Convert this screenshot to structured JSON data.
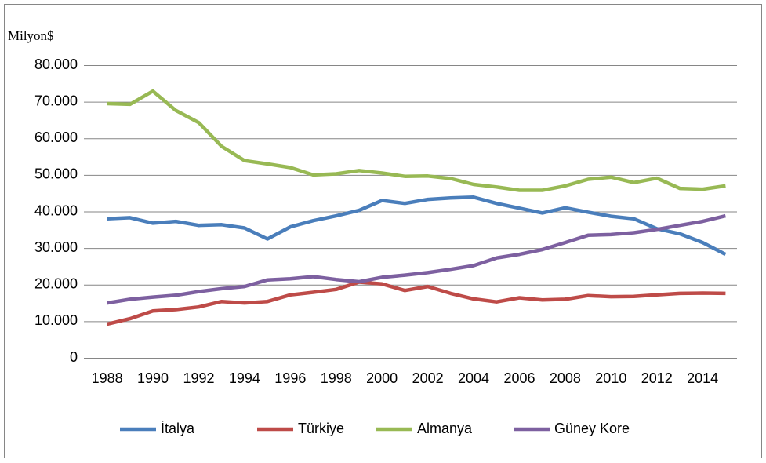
{
  "chart_data": {
    "type": "line",
    "y_label": "Milyon$",
    "categories": [
      "1988",
      null,
      "1990",
      null,
      "1992",
      null,
      "1994",
      null,
      "1996",
      null,
      "1998",
      null,
      "2000",
      null,
      "2002",
      null,
      "2004",
      null,
      "2006",
      null,
      "2008",
      null,
      "2010",
      null,
      "2012",
      null,
      "2014",
      null
    ],
    "series": [
      {
        "name": "İtalya",
        "color": "#4a7ebb",
        "values": [
          38000,
          38300,
          36800,
          37300,
          36200,
          36400,
          35500,
          32500,
          35800,
          37500,
          38800,
          40300,
          43000,
          42200,
          43300,
          43700,
          43900,
          42200,
          40900,
          39600,
          41000,
          39800,
          38700,
          38000,
          35300,
          33900,
          31500,
          28300
        ]
      },
      {
        "name": "Türkiye",
        "color": "#be4b48",
        "values": [
          9200,
          10700,
          12800,
          13200,
          13900,
          15400,
          15000,
          15400,
          17200,
          17900,
          18700,
          20700,
          20200,
          18400,
          19500,
          17600,
          16100,
          15300,
          16400,
          15800,
          16000,
          17000,
          16700,
          16800,
          17200,
          17600,
          17700,
          17600
        ]
      },
      {
        "name": "Almanya",
        "color": "#98b954",
        "values": [
          69500,
          69300,
          72900,
          67600,
          64300,
          57800,
          53900,
          53000,
          52000,
          50000,
          50300,
          51200,
          50500,
          49600,
          49700,
          49000,
          47400,
          46700,
          45800,
          45800,
          47000,
          48800,
          49400,
          47900,
          49100,
          46300,
          46100,
          47000
        ]
      },
      {
        "name": "Güney Kore",
        "color": "#7d60a0",
        "values": [
          15000,
          16000,
          16600,
          17100,
          18100,
          18900,
          19500,
          21300,
          21600,
          22200,
          21400,
          20800,
          22000,
          22600,
          23300,
          24200,
          25200,
          27300,
          28300,
          29600,
          31500,
          33500,
          33700,
          34200,
          35100,
          36200,
          37300,
          38800
        ]
      }
    ],
    "ylim": [
      0,
      80000
    ],
    "yticks": [
      0,
      {
        "value": 10000,
        "label": "10.000"
      },
      {
        "value": 20000,
        "label": "20.000"
      },
      {
        "value": 30000,
        "label": "30.000"
      },
      {
        "value": 40000,
        "label": "40.000"
      },
      {
        "value": 50000,
        "label": "50.000"
      },
      {
        "value": 60000,
        "label": "60.000"
      },
      {
        "value": 70000,
        "label": "70.000"
      },
      {
        "value": 80000,
        "label": "80.000"
      }
    ],
    "grid": true,
    "legend": "bottom"
  }
}
